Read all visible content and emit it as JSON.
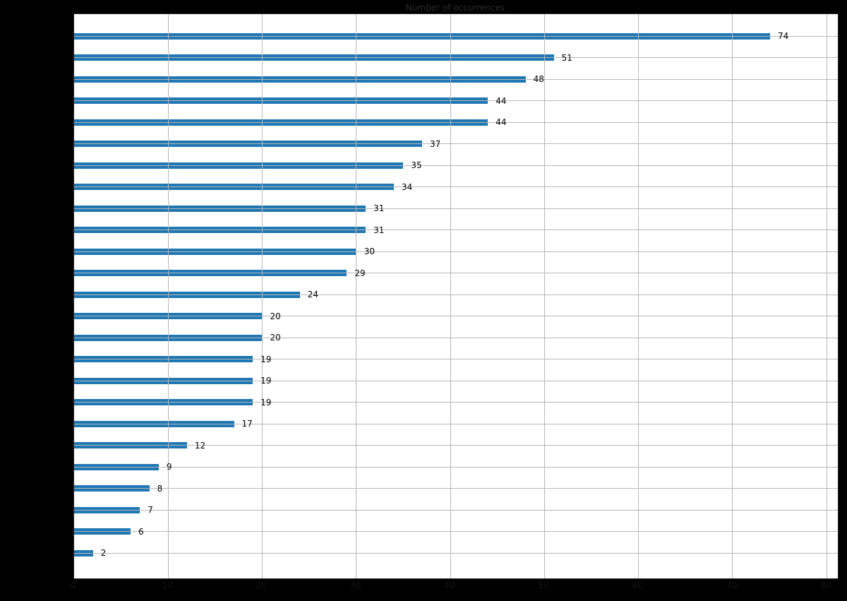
{
  "figure": {
    "background": "#000000",
    "plot_background": "#ffffff"
  },
  "chart_data": {
    "type": "bar",
    "orientation": "horizontal",
    "title": "Number of occurrences",
    "values": [
      74,
      51,
      48,
      44,
      44,
      37,
      35,
      34,
      31,
      31,
      30,
      29,
      24,
      20,
      20,
      19,
      19,
      19,
      17,
      12,
      9,
      8,
      7,
      6,
      2
    ],
    "value_labels": true,
    "xlim": [
      0,
      81.2
    ],
    "xticks": [
      0,
      10,
      20,
      30,
      40,
      50,
      60,
      70,
      80
    ],
    "grid": true,
    "gridline_color": "#b8b8b8",
    "bar_color": "#1f77b4",
    "value_label_color": "#000000",
    "legend": "none"
  }
}
